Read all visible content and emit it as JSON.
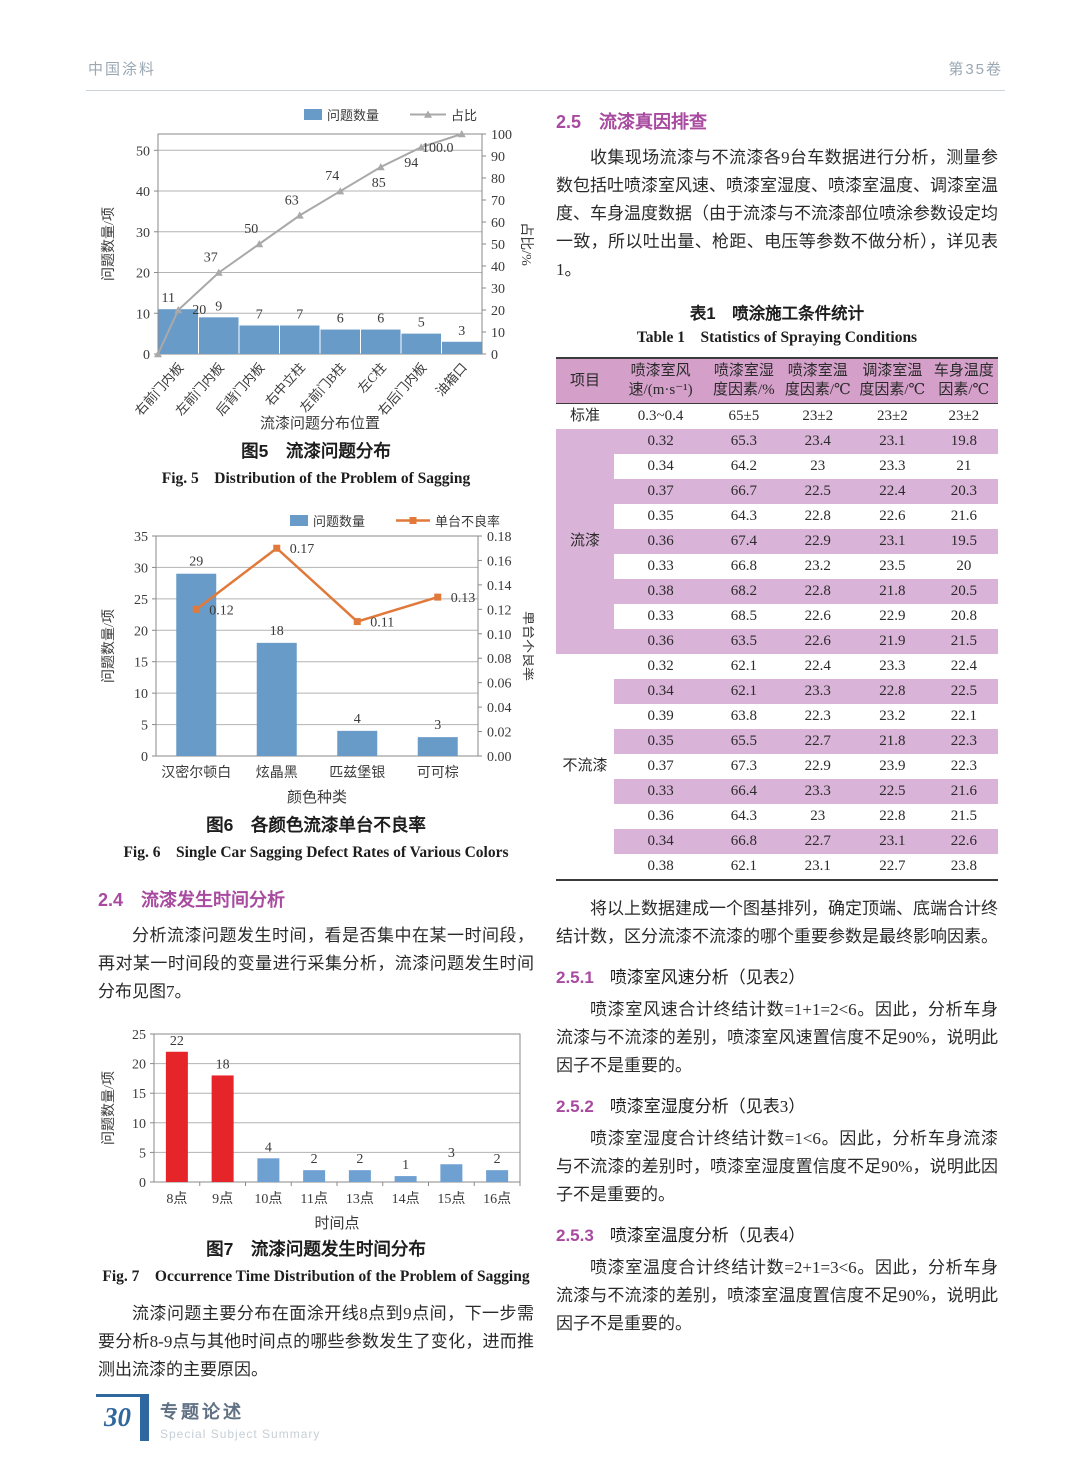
{
  "header": {
    "journal": "中国涂料",
    "volume": "第35卷"
  },
  "left": {
    "sec24": {
      "number": "2.4",
      "title": "流漆发生时间分析",
      "body": "分析流漆问题发生时间，看是否集中在某一时间段，再对某一时间段的变量进行采集分析，流漆问题发生时间分布见图7。"
    },
    "closing_para": "流漆问题主要分布在面涂开线8点到9点间，下一步需要分析8-9点与其他时间点的哪些参数发生了变化，进而推测出流漆的主要原因。"
  },
  "right": {
    "sec25": {
      "number": "2.5",
      "title": "流漆真因排查"
    },
    "para1": "收集现场流漆与不流漆各9台车数据进行分析，测量参数包括吐喷漆室风速、喷漆室湿度、喷漆室温度、调漆室温度、车身温度数据（由于流漆与不流漆部位喷涂参数设定均一致，所以吐出量、枪距、电压等参数不做分析），详见表1。",
    "table1": {
      "title_cn": "表1　喷涂施工条件统计",
      "title_en": "Table 1 Statistics of Spraying Conditions",
      "columns": [
        "项目",
        "喷漆室风速/(m·s⁻¹)",
        "喷漆室湿度因素/%",
        "喷漆室温度因素/℃",
        "调漆室温度因素/℃",
        "车身温度因素/℃"
      ],
      "standard": {
        "label": "标准",
        "values": [
          "0.3~0.4",
          "65±5",
          "23±2",
          "23±2",
          "23±2"
        ]
      },
      "groups": [
        {
          "label": "流漆",
          "rows": [
            [
              "0.32",
              "65.3",
              "23.4",
              "23.1",
              "19.8"
            ],
            [
              "0.34",
              "64.2",
              "23",
              "23.3",
              "21"
            ],
            [
              "0.37",
              "66.7",
              "22.5",
              "22.4",
              "20.3"
            ],
            [
              "0.35",
              "64.3",
              "22.8",
              "22.6",
              "21.6"
            ],
            [
              "0.36",
              "67.4",
              "22.9",
              "23.1",
              "19.5"
            ],
            [
              "0.33",
              "66.8",
              "23.2",
              "23.5",
              "20"
            ],
            [
              "0.38",
              "68.2",
              "22.8",
              "21.8",
              "20.5"
            ],
            [
              "0.33",
              "68.5",
              "22.6",
              "22.9",
              "20.8"
            ],
            [
              "0.36",
              "63.5",
              "22.6",
              "21.9",
              "21.5"
            ]
          ]
        },
        {
          "label": "不流漆",
          "rows": [
            [
              "0.32",
              "62.1",
              "22.4",
              "23.3",
              "22.4"
            ],
            [
              "0.34",
              "62.1",
              "23.3",
              "22.8",
              "22.5"
            ],
            [
              "0.39",
              "63.8",
              "22.3",
              "23.2",
              "22.1"
            ],
            [
              "0.35",
              "65.5",
              "22.7",
              "21.8",
              "22.3"
            ],
            [
              "0.37",
              "67.3",
              "22.9",
              "23.9",
              "22.3"
            ],
            [
              "0.33",
              "66.4",
              "23.3",
              "22.5",
              "21.6"
            ],
            [
              "0.36",
              "64.3",
              "23",
              "22.8",
              "21.5"
            ],
            [
              "0.34",
              "66.8",
              "22.7",
              "23.1",
              "22.6"
            ],
            [
              "0.38",
              "62.1",
              "23.1",
              "22.7",
              "23.8"
            ]
          ]
        }
      ]
    },
    "para2": "将以上数据建成一个图基排列，确定顶端、底端合计终结计数，区分流漆不流漆的哪个重要参数是最终影响因素。",
    "sec251": {
      "number": "2.5.1",
      "title": "喷漆室风速分析（见表2）",
      "body": "喷漆室风速合计终结计数=1+1=2<6。因此，分析车身流漆与不流漆的差别，喷漆室风速置信度不足90%，说明此因子不是重要的。"
    },
    "sec252": {
      "number": "2.5.2",
      "title": "喷漆室湿度分析（见表3）",
      "body": "喷漆室湿度合计终结计数=1<6。因此，分析车身流漆与不流漆的差别时，喷漆室湿度置信度不足90%，说明此因子不是重要的。"
    },
    "sec253": {
      "number": "2.5.3",
      "title": "喷漆室温度分析（见表4）",
      "body": "喷漆室温度合计终结计数=2+1=3<6。因此，分析车身流漆与不流漆的差别，喷漆室温度置信度不足90%，说明此因子不是重要的。"
    }
  },
  "footer": {
    "page_number": "30",
    "column_cn": "专题论述",
    "column_en": "Special Subject Summary"
  },
  "colors": {
    "accent_purple": "#a84a9f",
    "bar_blue": "#699bc8",
    "bar_blue_light": "#6fa0d2",
    "bar_red": "#e5252a",
    "pareto_line": "#a9a9a9",
    "line_orange": "#e0793a",
    "table_header_pink": "#d49fc9",
    "table_stripe_pink": "#dab4d8",
    "footer_blue": "#2f679f"
  },
  "chart_data": [
    {
      "id": "fig5",
      "type": "pareto",
      "title_cn": "图5　流漆问题分布",
      "title_en": "Fig. 5 Distribution of the Problem of Sagging",
      "categories": [
        "右前门内板",
        "左前门内板",
        "后背门内板",
        "右中立柱",
        "左前门B柱",
        "左C柱",
        "右后门内板",
        "油箱口"
      ],
      "series": [
        {
          "name": "问题数量",
          "type": "bar",
          "values": [
            11,
            9,
            7,
            7,
            6,
            6,
            5,
            3
          ]
        },
        {
          "name": "占比",
          "type": "line",
          "values": [
            20,
            37,
            50,
            63,
            74,
            85,
            94,
            100
          ],
          "labels": [
            "20",
            "37",
            "50",
            "63",
            "74",
            "85",
            "94",
            "100.0"
          ]
        }
      ],
      "xlabel": "流漆问题分布位置",
      "ylabel_left": "问题数量/项",
      "ylabel_right": "占比/%",
      "ylim_left": [
        0,
        54
      ],
      "ylim_right": [
        0,
        100
      ],
      "yticks_left": [
        0,
        10,
        20,
        30,
        40,
        50
      ],
      "yticks_right": [
        0,
        10,
        20,
        30,
        40,
        50,
        60,
        70,
        80,
        90,
        100
      ],
      "legend": [
        "问题数量",
        "占比"
      ],
      "legend_position": "top-right",
      "grid": true
    },
    {
      "id": "fig6",
      "type": "bar+line",
      "title_cn": "图6　各颜色流漆单台不良率",
      "title_en": "Fig. 6 Single Car Sagging Defect Rates of Various Colors",
      "categories": [
        "汉密尔顿白",
        "炫晶黑",
        "匹兹堡银",
        "可可棕"
      ],
      "series": [
        {
          "name": "问题数量",
          "type": "bar",
          "values": [
            29,
            18,
            4,
            3
          ]
        },
        {
          "name": "单台不良率",
          "type": "line",
          "values": [
            0.12,
            0.17,
            0.11,
            0.13
          ],
          "labels": [
            "0.12",
            "0.17",
            "0.11",
            "0.13"
          ]
        }
      ],
      "xlabel": "颜色种类",
      "ylabel_left": "问题数量/项",
      "ylabel_right": "单台不良率",
      "ylim_left": [
        0,
        35
      ],
      "ylim_right": [
        0,
        0.18
      ],
      "yticks_left": [
        0,
        5,
        10,
        15,
        20,
        25,
        30,
        35
      ],
      "yticks_right": [
        "0.00",
        "0.02",
        "0.04",
        "0.06",
        "0.08",
        "0.10",
        "0.12",
        "0.14",
        "0.16",
        "0.18"
      ],
      "legend": [
        "问题数量",
        "单台不良率"
      ],
      "legend_position": "top-right",
      "grid": true
    },
    {
      "id": "fig7",
      "type": "bar",
      "title_cn": "图7　流漆问题发生时间分布",
      "title_en": "Fig. 7 Occurrence Time Distribution of the Problem of Sagging",
      "categories": [
        "8点",
        "9点",
        "10点",
        "11点",
        "13点",
        "14点",
        "15点",
        "16点"
      ],
      "values": [
        22,
        18,
        4,
        2,
        2,
        1,
        3,
        2
      ],
      "bar_colors": [
        "#e5252a",
        "#e5252a",
        "#6fa0d2",
        "#6fa0d2",
        "#6fa0d2",
        "#6fa0d2",
        "#6fa0d2",
        "#6fa0d2"
      ],
      "xlabel": "时间点",
      "ylabel": "问题数量/项",
      "ylim": [
        0,
        25
      ],
      "yticks": [
        0,
        5,
        10,
        15,
        20,
        25
      ],
      "grid": true
    }
  ]
}
